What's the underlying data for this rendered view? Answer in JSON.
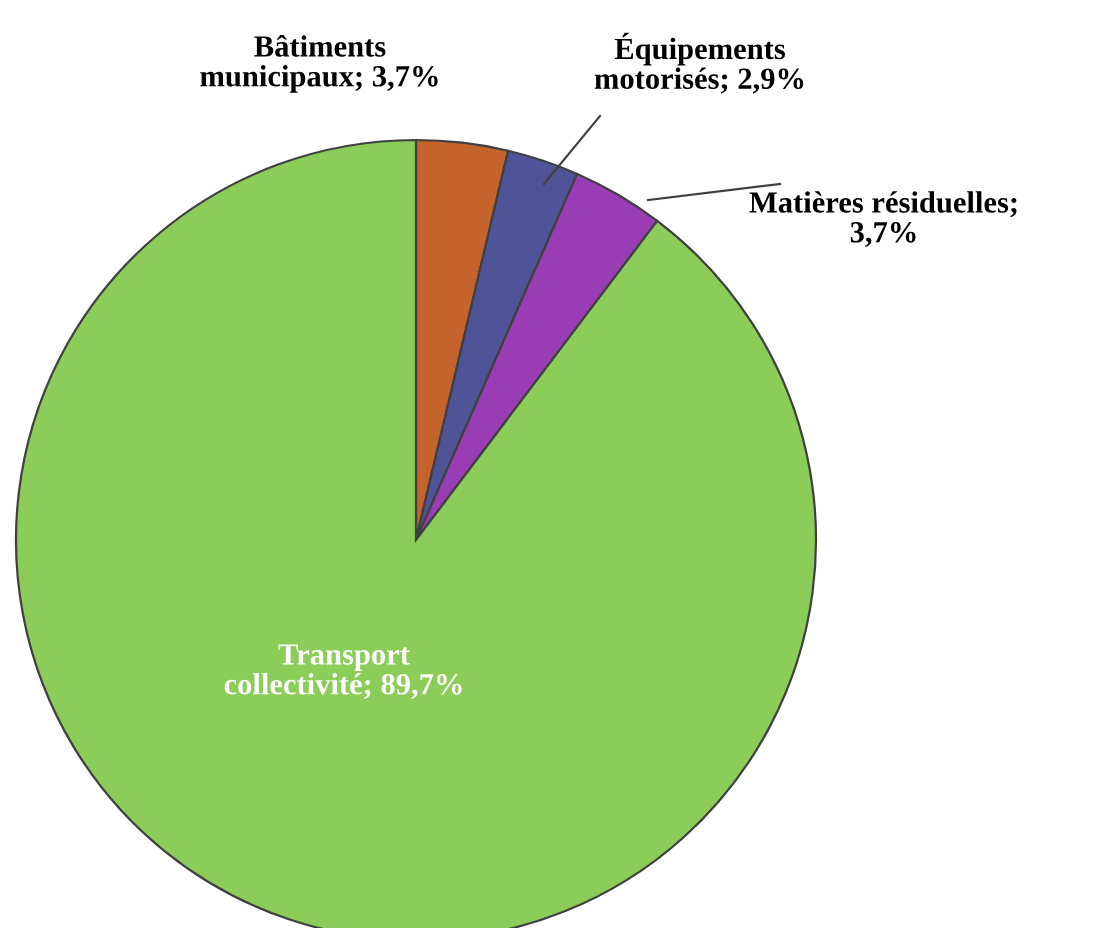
{
  "chart_data": {
    "type": "pie",
    "categories": [
      "Bâtiments municipaux; 3,7%",
      "Équipements motorisés; 2,9%",
      "Matières résiduelles; 3,7%",
      "Transport collectivité; 89,7%"
    ],
    "values": [
      3.7,
      2.9,
      3.7,
      89.7
    ],
    "colors": [
      "#c4632c",
      "#4f5498",
      "#9a3db4",
      "#8ccd5a"
    ]
  }
}
